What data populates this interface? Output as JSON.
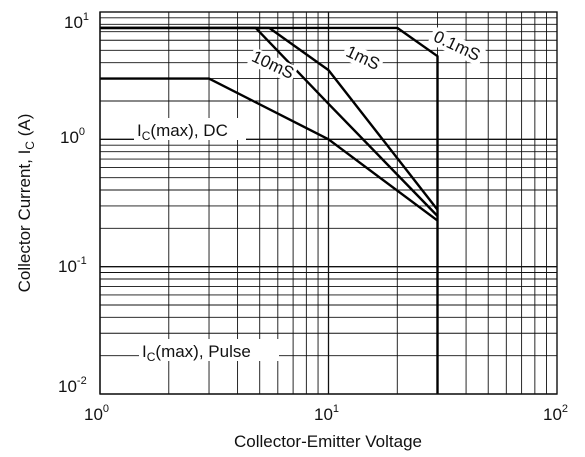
{
  "chart_data": {
    "type": "line",
    "title": "",
    "xlabel": "Collector-Emitter Voltage",
    "ylabel": {
      "prefix": "Collector Current, I",
      "sub": "C",
      "suffix": " (A)"
    },
    "xscale": "log",
    "yscale": "log",
    "xlim": [
      1,
      100
    ],
    "ylim": [
      0.01,
      10
    ],
    "grid": true,
    "x_ticks": [
      {
        "base": "10",
        "exp": "0"
      },
      {
        "base": "10",
        "exp": "1"
      },
      {
        "base": "10",
        "exp": "2"
      }
    ],
    "y_ticks": [
      {
        "base": "10",
        "exp": "1"
      },
      {
        "base": "10",
        "exp": "0"
      },
      {
        "base": "10",
        "exp": "-1"
      },
      {
        "base": "10",
        "exp": "-2"
      }
    ],
    "series": [
      {
        "name": "I_C(max), DC",
        "x": [
          1,
          3,
          10,
          30
        ],
        "y": [
          3,
          3,
          1.0,
          0.23
        ]
      },
      {
        "name": "10mS",
        "x": [
          1,
          4.8,
          10,
          30
        ],
        "y": [
          7.5,
          7.5,
          1.9,
          0.25
        ]
      },
      {
        "name": "1mS",
        "x": [
          1,
          5.5,
          10,
          30
        ],
        "y": [
          7.5,
          7.5,
          3.5,
          0.28
        ]
      },
      {
        "name": "0.1mS",
        "x": [
          1,
          20,
          30,
          30
        ],
        "y": [
          7.5,
          7.5,
          4.5,
          0.01
        ]
      }
    ],
    "annotations": [
      {
        "id": "dc",
        "main": "I",
        "sub": "C",
        "rest": "(max), DC"
      },
      {
        "id": "pulse",
        "main": "I",
        "sub": "C",
        "rest": "(max), Pulse"
      },
      {
        "id": "ms10",
        "text": "10mS"
      },
      {
        "id": "ms1",
        "text": "1mS"
      },
      {
        "id": "ms01",
        "text": "0.1mS"
      }
    ]
  }
}
